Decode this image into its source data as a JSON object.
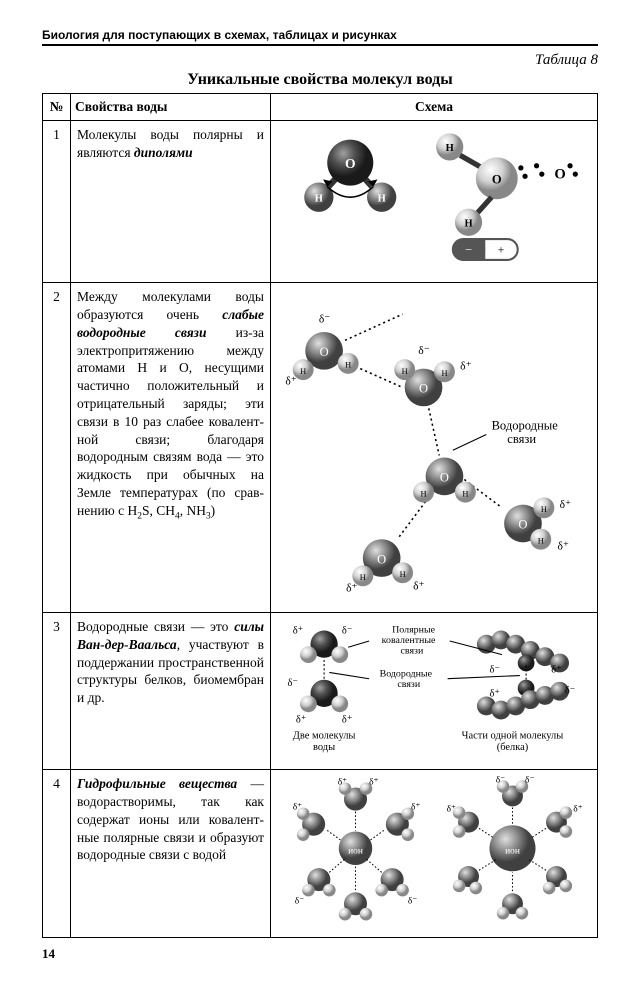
{
  "header": "Биология для поступающих в схемах, таблицах и рисунках",
  "tableLabel": "Таблица 8",
  "tableTitle": "Уникальные свойства молекул воды",
  "columns": {
    "num": "№",
    "prop": "Свойства воды",
    "schema": "Схема"
  },
  "rows": [
    {
      "n": "1",
      "text": "Молекулы воды поляр­ны и являются <b><em>дипо­лями</em></b>"
    },
    {
      "n": "2",
      "text": "Между молекулами воды образуются очень <b><em>слабые водородные связи</em></b> из-за электро­притяжению между атомами H и O, несущи­ми частично положи­тельный и отрицатель­ный заряды; эти связи в 10 раз слабее ковалент­ной связи; благода­ря водородным связям вода — это жидкость при обычных на Земле температурах (по срав­нению с H<span class='sub'>2</span>S, CH<span class='sub'>4</span>, NH<span class='sub'>3</span>)"
    },
    {
      "n": "3",
      "text": "Водородные связи — это <b><em>силы Ван-дер-Ва­альса</em></b>, участвуют в под­держании пространст­венной структуры бел­ков, биомембран и др."
    },
    {
      "n": "4",
      "text": "<b><em>Гидрофильные веще­ства</em></b> — водораствори­мы, так как содержат ионы или ковалент­ные полярные связи и образуют водородные связи с водой"
    }
  ],
  "labels": {
    "hbonds": "Водородные\nсвязи",
    "polar": "Полярные\nковалентные\nсвязи",
    "hbonds2": "Водородные\nсвязи",
    "twomol": "Две молекулы\nводы",
    "onemol": "Части одной молекулы\n(белка)"
  },
  "colors": {
    "darkAtom": "#3a3a3a",
    "midAtom": "#7a7a7a",
    "lightAtom": "#b8b8b8",
    "hlAtom": "#e8e8e8",
    "stroke": "#2a2a2a",
    "bg": "#ffffff"
  },
  "pageNumber": "14"
}
